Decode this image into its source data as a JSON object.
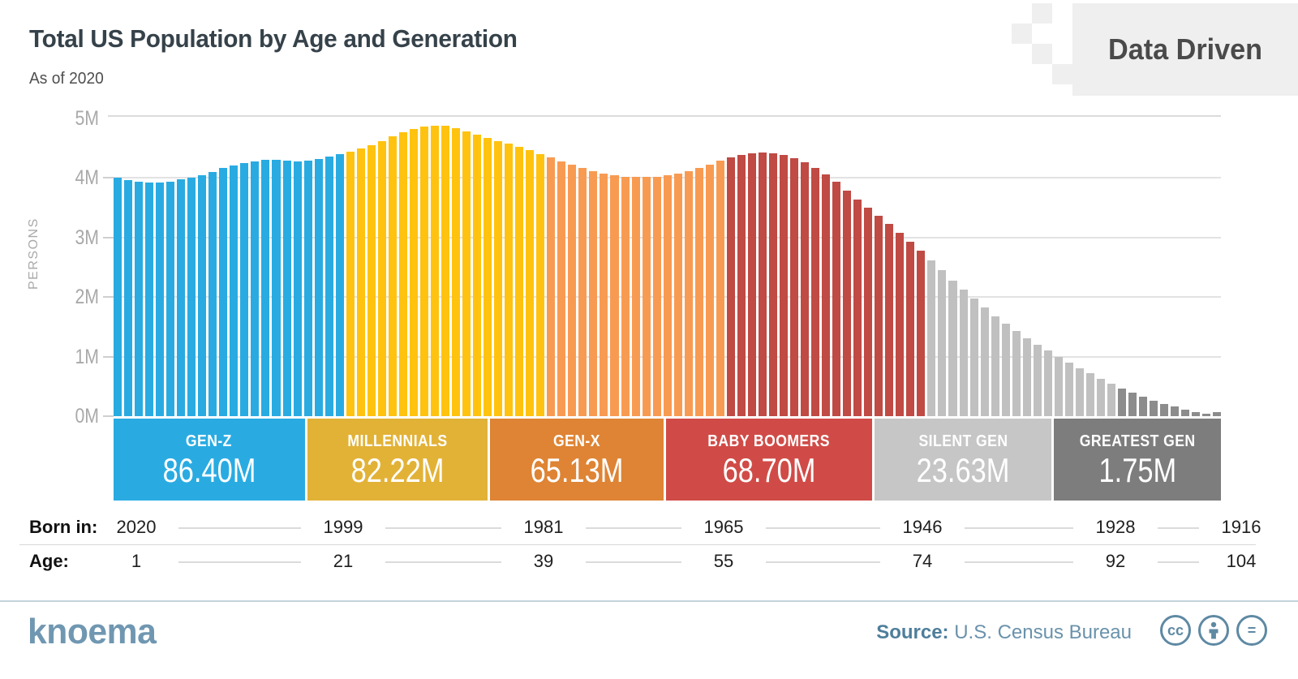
{
  "header": {
    "title": "Total US Population by Age and Generation",
    "subtitle": "As of 2020",
    "brand_badge": "Data Driven"
  },
  "chart_data": {
    "type": "bar",
    "title": "Total US Population by Age and Generation",
    "subtitle": "As of 2020",
    "ylabel": "PERSONS",
    "unit": "millions of persons per single year of age",
    "ylim": [
      0,
      5.05
    ],
    "grid": true,
    "legend_position": "none",
    "yticks": [
      {
        "label": "5M",
        "value": 5
      },
      {
        "label": "4M",
        "value": 4
      },
      {
        "label": "3M",
        "value": 3
      },
      {
        "label": "2M",
        "value": 2
      },
      {
        "label": "1M",
        "value": 1
      },
      {
        "label": "0M",
        "value": 0
      }
    ],
    "x_axis": {
      "born_row_label": "Born in:",
      "age_row_label": "Age:",
      "ticks": [
        {
          "born": "2020",
          "age": "1"
        },
        {
          "born": "1999",
          "age": "21"
        },
        {
          "born": "1981",
          "age": "39"
        },
        {
          "born": "1965",
          "age": "55"
        },
        {
          "born": "1946",
          "age": "74"
        },
        {
          "born": "1928",
          "age": "92"
        },
        {
          "born": "1916",
          "age": "104"
        }
      ]
    },
    "generations": [
      {
        "name": "GEN-Z",
        "total_label": "86.40M",
        "band_color": "#29ABE2",
        "bar_color": "#29ABE2",
        "values": [
          4.0,
          3.96,
          3.93,
          3.92,
          3.92,
          3.94,
          3.97,
          4.0,
          4.05,
          4.1,
          4.16,
          4.21,
          4.25,
          4.28,
          4.3,
          4.3,
          4.29,
          4.28,
          4.29,
          4.32,
          4.36,
          4.4
        ]
      },
      {
        "name": "MILLENNIALS",
        "total_label": "82.22M",
        "band_color": "#E2B237",
        "bar_color": "#FFC30F",
        "values": [
          4.44,
          4.49,
          4.55,
          4.62,
          4.69,
          4.76,
          4.82,
          4.86,
          4.88,
          4.87,
          4.83,
          4.78,
          4.72,
          4.67,
          4.62,
          4.57,
          4.52,
          4.46,
          4.4
        ]
      },
      {
        "name": "GEN-X",
        "total_label": "65.13M",
        "band_color": "#DE8434",
        "bar_color": "#F89B52",
        "values": [
          4.34,
          4.28,
          4.22,
          4.16,
          4.11,
          4.07,
          4.04,
          4.02,
          4.01,
          4.01,
          4.02,
          4.04,
          4.07,
          4.11,
          4.16,
          4.22,
          4.29
        ]
      },
      {
        "name": "BABY BOOMERS",
        "total_label": "68.70M",
        "band_color": "#D04B47",
        "bar_color": "#C04A44",
        "values": [
          4.34,
          4.38,
          4.41,
          4.42,
          4.41,
          4.38,
          4.33,
          4.26,
          4.17,
          4.06,
          3.93,
          3.79,
          3.64,
          3.5,
          3.36,
          3.22,
          3.08,
          2.93,
          2.78
        ]
      },
      {
        "name": "SILENT GEN",
        "total_label": "23.63M",
        "band_color": "#C6C6C6",
        "bar_color": "#C0C0C0",
        "values": [
          2.62,
          2.45,
          2.28,
          2.12,
          1.97,
          1.82,
          1.68,
          1.55,
          1.43,
          1.31,
          1.2,
          1.1,
          1.0,
          0.9,
          0.81,
          0.72,
          0.63,
          0.55
        ]
      },
      {
        "name": "GREATEST GEN",
        "total_label": "1.75M",
        "band_color": "#7D7D7D",
        "bar_color": "#8C8C8C",
        "values": [
          0.47,
          0.4,
          0.33,
          0.26,
          0.21,
          0.16,
          0.11,
          0.07,
          0.04,
          0.07
        ]
      }
    ],
    "colors": {
      "grid": "#E2E2E2",
      "axis_text": "#A9A9A9",
      "title_text": "#36424A"
    }
  },
  "footer": {
    "brand": "knoema",
    "source_label": "Source:",
    "source_value": "U.S. Census Bureau",
    "license": {
      "cc_text": "cc",
      "equal_text": "="
    }
  }
}
